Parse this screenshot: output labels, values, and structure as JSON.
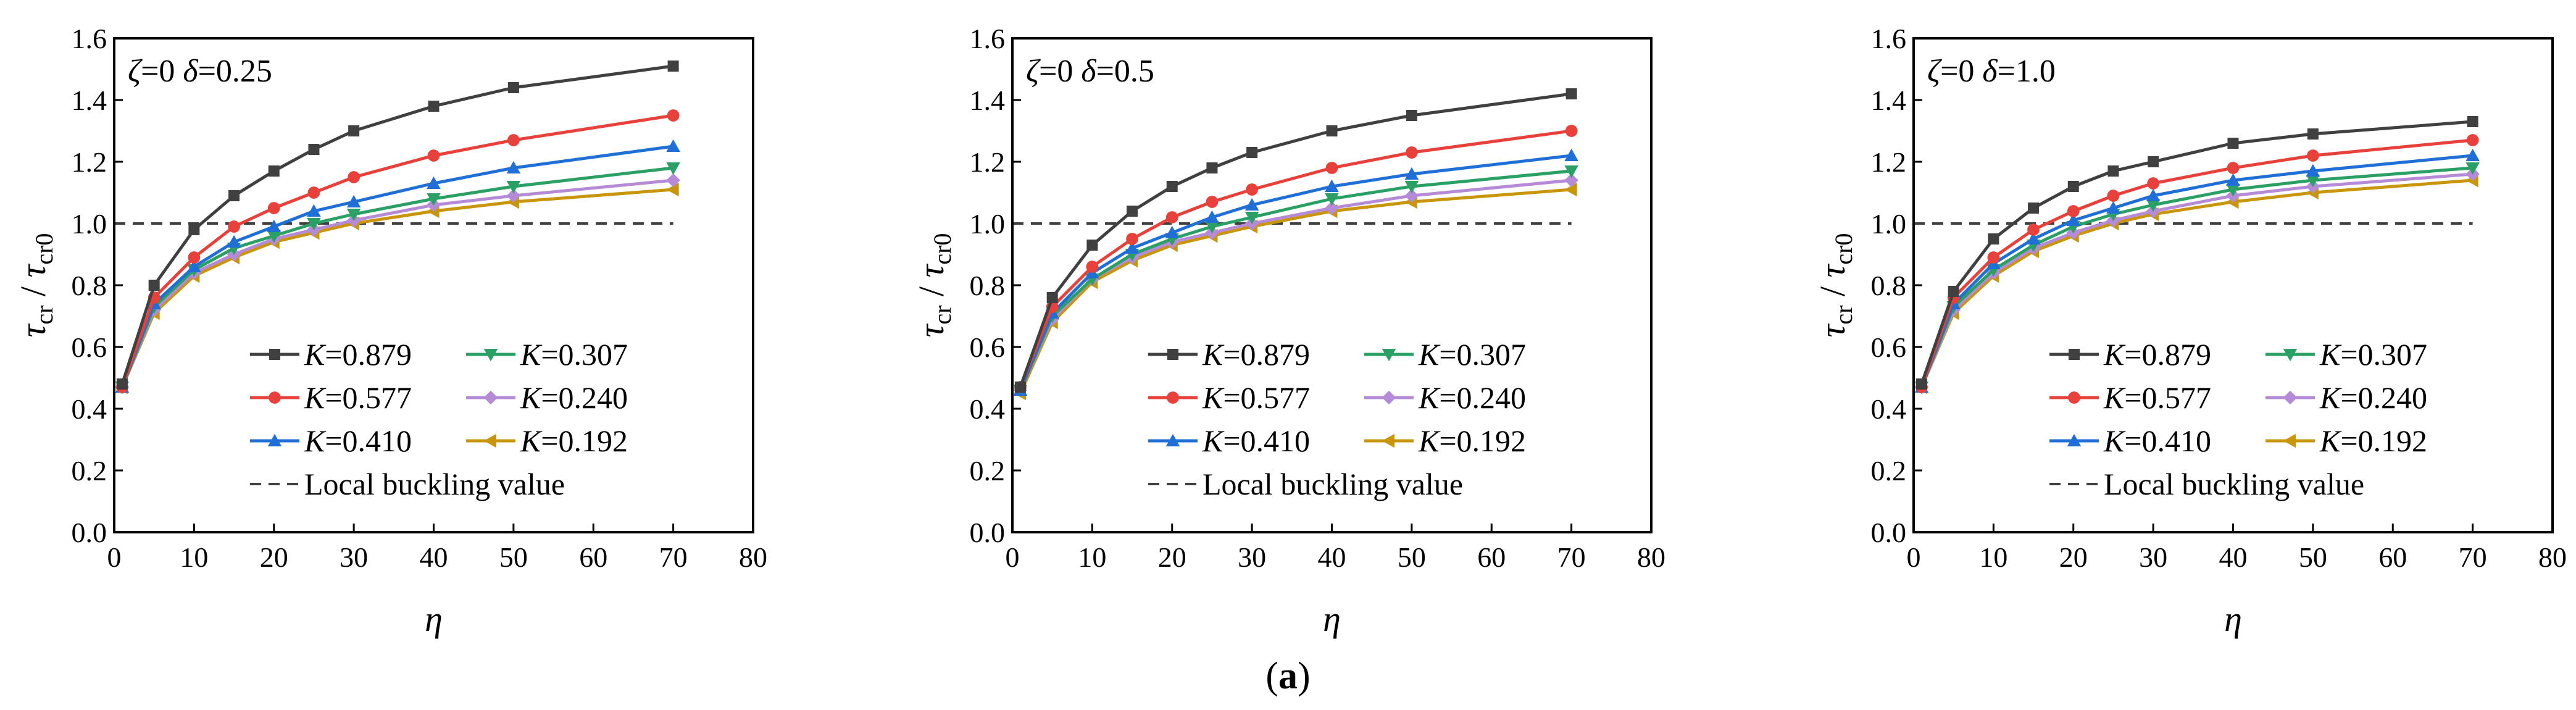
{
  "figure": {
    "caption_open": "(",
    "caption_letter": "a",
    "caption_close": ")"
  },
  "colors": {
    "s1": "#404040",
    "s2": "#e8413b",
    "s3": "#1f6fd6",
    "s4": "#2aa064",
    "s5": "#b58bd8",
    "s6": "#c8950b",
    "ref": "#404040"
  },
  "chart_data": [
    {
      "type": "line",
      "annotation": {
        "zeta": "ζ=0",
        "delta": "δ=0.25"
      },
      "xlabel": "η",
      "ylabel_main": "τ",
      "ylabel_sub": "cr",
      "ylabel_sep": " / ",
      "ylabel_main2": "τ",
      "ylabel_sub2": "cr0",
      "xlim": [
        0,
        80
      ],
      "ylim": [
        0,
        1.6
      ],
      "xticks": [
        "0",
        "10",
        "20",
        "30",
        "40",
        "50",
        "60",
        "70",
        "80"
      ],
      "yticks": [
        "0.0",
        "0.2",
        "0.4",
        "0.6",
        "0.8",
        "1.0",
        "1.2",
        "1.4",
        "1.6"
      ],
      "x": [
        1,
        5,
        10,
        15,
        20,
        25,
        30,
        40,
        50,
        70
      ],
      "reference": {
        "name": "Local buckling value",
        "y": 1.0,
        "x_range": [
          0,
          70
        ]
      },
      "series": [
        {
          "k": "K",
          "eq": "=0.879",
          "values": [
            0.48,
            0.8,
            0.98,
            1.09,
            1.17,
            1.24,
            1.3,
            1.38,
            1.44,
            1.51
          ]
        },
        {
          "k": "K",
          "eq": "=0.577",
          "values": [
            0.47,
            0.76,
            0.89,
            0.99,
            1.05,
            1.1,
            1.15,
            1.22,
            1.27,
            1.35
          ]
        },
        {
          "k": "K",
          "eq": "=0.410",
          "values": [
            0.47,
            0.74,
            0.86,
            0.94,
            0.99,
            1.04,
            1.07,
            1.13,
            1.18,
            1.25
          ]
        },
        {
          "k": "K",
          "eq": "=0.307",
          "values": [
            0.47,
            0.73,
            0.85,
            0.92,
            0.96,
            1.0,
            1.03,
            1.08,
            1.12,
            1.18
          ]
        },
        {
          "k": "K",
          "eq": "=0.240",
          "values": [
            0.47,
            0.72,
            0.84,
            0.9,
            0.95,
            0.98,
            1.01,
            1.06,
            1.09,
            1.14
          ]
        },
        {
          "k": "K",
          "eq": "=0.192",
          "values": [
            0.47,
            0.71,
            0.83,
            0.89,
            0.94,
            0.97,
            1.0,
            1.04,
            1.07,
            1.11
          ]
        }
      ]
    },
    {
      "type": "line",
      "annotation": {
        "zeta": "ζ=0",
        "delta": "δ=0.5"
      },
      "xlabel": "η",
      "ylabel_main": "τ",
      "ylabel_sub": "cr",
      "ylabel_sep": " / ",
      "ylabel_main2": "τ",
      "ylabel_sub2": "cr0",
      "xlim": [
        0,
        80
      ],
      "ylim": [
        0,
        1.6
      ],
      "xticks": [
        "0",
        "10",
        "20",
        "30",
        "40",
        "50",
        "60",
        "70",
        "80"
      ],
      "yticks": [
        "0.0",
        "0.2",
        "0.4",
        "0.6",
        "0.8",
        "1.0",
        "1.2",
        "1.4",
        "1.6"
      ],
      "x": [
        1,
        5,
        10,
        15,
        20,
        25,
        30,
        40,
        50,
        70
      ],
      "reference": {
        "name": "Local buckling value",
        "y": 1.0,
        "x_range": [
          0,
          70
        ]
      },
      "series": [
        {
          "k": "K",
          "eq": "=0.879",
          "values": [
            0.47,
            0.76,
            0.93,
            1.04,
            1.12,
            1.18,
            1.23,
            1.3,
            1.35,
            1.42
          ]
        },
        {
          "k": "K",
          "eq": "=0.577",
          "values": [
            0.47,
            0.73,
            0.86,
            0.95,
            1.02,
            1.07,
            1.11,
            1.18,
            1.23,
            1.3
          ]
        },
        {
          "k": "K",
          "eq": "=0.410",
          "values": [
            0.46,
            0.71,
            0.84,
            0.92,
            0.97,
            1.02,
            1.06,
            1.12,
            1.16,
            1.22
          ]
        },
        {
          "k": "K",
          "eq": "=0.307",
          "values": [
            0.46,
            0.7,
            0.82,
            0.9,
            0.95,
            0.99,
            1.02,
            1.08,
            1.12,
            1.17
          ]
        },
        {
          "k": "K",
          "eq": "=0.240",
          "values": [
            0.46,
            0.69,
            0.82,
            0.89,
            0.94,
            0.97,
            1.0,
            1.05,
            1.09,
            1.14
          ]
        },
        {
          "k": "K",
          "eq": "=0.192",
          "values": [
            0.45,
            0.68,
            0.81,
            0.88,
            0.93,
            0.96,
            0.99,
            1.04,
            1.07,
            1.11
          ]
        }
      ]
    },
    {
      "type": "line",
      "annotation": {
        "zeta": "ζ=0",
        "delta": "δ=1.0"
      },
      "xlabel": "η",
      "ylabel_main": "τ",
      "ylabel_sub": "cr",
      "ylabel_sep": " / ",
      "ylabel_main2": "τ",
      "ylabel_sub2": "cr0",
      "xlim": [
        0,
        80
      ],
      "ylim": [
        0,
        1.6
      ],
      "xticks": [
        "0",
        "10",
        "20",
        "30",
        "40",
        "50",
        "60",
        "70",
        "80"
      ],
      "yticks": [
        "0.0",
        "0.2",
        "0.4",
        "0.6",
        "0.8",
        "1.0",
        "1.2",
        "1.4",
        "1.6"
      ],
      "x": [
        1,
        5,
        10,
        15,
        20,
        25,
        30,
        40,
        50,
        70
      ],
      "reference": {
        "name": "Local buckling value",
        "y": 1.0,
        "x_range": [
          0,
          70
        ]
      },
      "series": [
        {
          "k": "K",
          "eq": "=0.879",
          "values": [
            0.48,
            0.78,
            0.95,
            1.05,
            1.12,
            1.17,
            1.2,
            1.26,
            1.29,
            1.33
          ]
        },
        {
          "k": "K",
          "eq": "=0.577",
          "values": [
            0.47,
            0.76,
            0.89,
            0.98,
            1.04,
            1.09,
            1.13,
            1.18,
            1.22,
            1.27
          ]
        },
        {
          "k": "K",
          "eq": "=0.410",
          "values": [
            0.47,
            0.74,
            0.87,
            0.95,
            1.01,
            1.05,
            1.09,
            1.14,
            1.17,
            1.22
          ]
        },
        {
          "k": "K",
          "eq": "=0.307",
          "values": [
            0.47,
            0.73,
            0.85,
            0.93,
            0.99,
            1.03,
            1.06,
            1.11,
            1.14,
            1.18
          ]
        },
        {
          "k": "K",
          "eq": "=0.240",
          "values": [
            0.47,
            0.72,
            0.84,
            0.92,
            0.97,
            1.01,
            1.04,
            1.09,
            1.12,
            1.16
          ]
        },
        {
          "k": "K",
          "eq": "=0.192",
          "values": [
            0.47,
            0.71,
            0.83,
            0.91,
            0.96,
            1.0,
            1.03,
            1.07,
            1.1,
            1.14
          ]
        }
      ]
    }
  ]
}
